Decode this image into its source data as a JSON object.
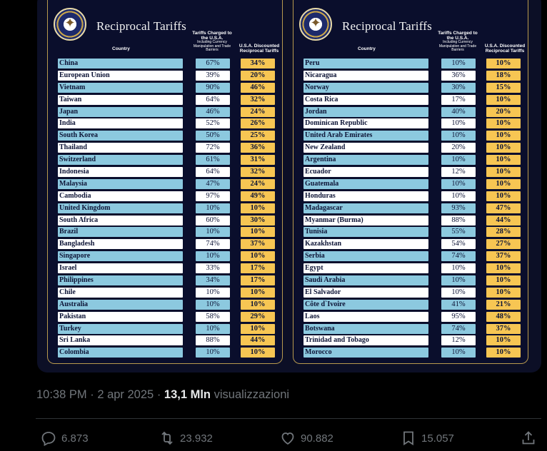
{
  "left_panel": {
    "title": "Reciprocal Tariffs",
    "col_country": "Country",
    "col_charged": "Tariffs Charged to the U.S.A.",
    "col_charged_sub": "Including Currency Manipulation and Trade Barriers",
    "col_discounted": "U.S.A. Discounted Reciprocal Tariffs",
    "rows": [
      {
        "country": "China",
        "charged": "67%",
        "discounted": "34%"
      },
      {
        "country": "European Union",
        "charged": "39%",
        "discounted": "20%"
      },
      {
        "country": "Vietnam",
        "charged": "90%",
        "discounted": "46%"
      },
      {
        "country": "Taiwan",
        "charged": "64%",
        "discounted": "32%"
      },
      {
        "country": "Japan",
        "charged": "46%",
        "discounted": "24%"
      },
      {
        "country": "India",
        "charged": "52%",
        "discounted": "26%"
      },
      {
        "country": "South Korea",
        "charged": "50%",
        "discounted": "25%"
      },
      {
        "country": "Thailand",
        "charged": "72%",
        "discounted": "36%"
      },
      {
        "country": "Switzerland",
        "charged": "61%",
        "discounted": "31%"
      },
      {
        "country": "Indonesia",
        "charged": "64%",
        "discounted": "32%"
      },
      {
        "country": "Malaysia",
        "charged": "47%",
        "discounted": "24%"
      },
      {
        "country": "Cambodia",
        "charged": "97%",
        "discounted": "49%"
      },
      {
        "country": "United Kingdom",
        "charged": "10%",
        "discounted": "10%"
      },
      {
        "country": "South Africa",
        "charged": "60%",
        "discounted": "30%"
      },
      {
        "country": "Brazil",
        "charged": "10%",
        "discounted": "10%"
      },
      {
        "country": "Bangladesh",
        "charged": "74%",
        "discounted": "37%"
      },
      {
        "country": "Singapore",
        "charged": "10%",
        "discounted": "10%"
      },
      {
        "country": "Israel",
        "charged": "33%",
        "discounted": "17%"
      },
      {
        "country": "Philippines",
        "charged": "34%",
        "discounted": "17%"
      },
      {
        "country": "Chile",
        "charged": "10%",
        "discounted": "10%"
      },
      {
        "country": "Australia",
        "charged": "10%",
        "discounted": "10%"
      },
      {
        "country": "Pakistan",
        "charged": "58%",
        "discounted": "29%"
      },
      {
        "country": "Turkey",
        "charged": "10%",
        "discounted": "10%"
      },
      {
        "country": "Sri Lanka",
        "charged": "88%",
        "discounted": "44%"
      },
      {
        "country": "Colombia",
        "charged": "10%",
        "discounted": "10%"
      }
    ]
  },
  "right_panel": {
    "title": "Reciprocal Tariffs",
    "col_country": "Country",
    "col_charged": "Tariffs Charged to the U.S.A.",
    "col_charged_sub": "Including Currency Manipulation and Trade Barriers",
    "col_discounted": "U.S.A. Discounted Reciprocal Tariffs",
    "rows": [
      {
        "country": "Peru",
        "charged": "10%",
        "discounted": "10%"
      },
      {
        "country": "Nicaragua",
        "charged": "36%",
        "discounted": "18%"
      },
      {
        "country": "Norway",
        "charged": "30%",
        "discounted": "15%"
      },
      {
        "country": "Costa Rica",
        "charged": "17%",
        "discounted": "10%"
      },
      {
        "country": "Jordan",
        "charged": "40%",
        "discounted": "20%"
      },
      {
        "country": "Dominican Republic",
        "charged": "10%",
        "discounted": "10%"
      },
      {
        "country": "United Arab Emirates",
        "charged": "10%",
        "discounted": "10%"
      },
      {
        "country": "New Zealand",
        "charged": "20%",
        "discounted": "10%"
      },
      {
        "country": "Argentina",
        "charged": "10%",
        "discounted": "10%"
      },
      {
        "country": "Ecuador",
        "charged": "12%",
        "discounted": "10%"
      },
      {
        "country": "Guatemala",
        "charged": "10%",
        "discounted": "10%"
      },
      {
        "country": "Honduras",
        "charged": "10%",
        "discounted": "10%"
      },
      {
        "country": "Madagascar",
        "charged": "93%",
        "discounted": "47%"
      },
      {
        "country": "Myanmar (Burma)",
        "charged": "88%",
        "discounted": "44%"
      },
      {
        "country": "Tunisia",
        "charged": "55%",
        "discounted": "28%"
      },
      {
        "country": "Kazakhstan",
        "charged": "54%",
        "discounted": "27%"
      },
      {
        "country": "Serbia",
        "charged": "74%",
        "discounted": "37%"
      },
      {
        "country": "Egypt",
        "charged": "10%",
        "discounted": "10%"
      },
      {
        "country": "Saudi Arabia",
        "charged": "10%",
        "discounted": "10%"
      },
      {
        "country": "El Salvador",
        "charged": "10%",
        "discounted": "10%"
      },
      {
        "country": "Côte d`Ivoire",
        "charged": "41%",
        "discounted": "21%"
      },
      {
        "country": "Laos",
        "charged": "95%",
        "discounted": "48%"
      },
      {
        "country": "Botswana",
        "charged": "74%",
        "discounted": "37%"
      },
      {
        "country": "Trinidad and Tobago",
        "charged": "12%",
        "discounted": "10%"
      },
      {
        "country": "Morocco",
        "charged": "10%",
        "discounted": "10%"
      }
    ]
  },
  "post": {
    "time": "10:38 PM",
    "date": "2 apr 2025",
    "views": "13,1 Mln",
    "views_label": "visualizzazioni",
    "replies": "6.873",
    "reposts": "23.932",
    "likes": "90.882",
    "bookmarks": "15.057"
  },
  "icons": {
    "reply": "reply-icon",
    "repost": "repost-icon",
    "like": "heart-icon",
    "bookmark": "bookmark-icon",
    "share": "share-icon"
  },
  "colors": {
    "row_blue": "#8cc9df",
    "row_white": "#ffffff",
    "discount_yellow": "#f7c653",
    "panel_bg": "#0a0e2c",
    "muted_text": "#71767b"
  }
}
